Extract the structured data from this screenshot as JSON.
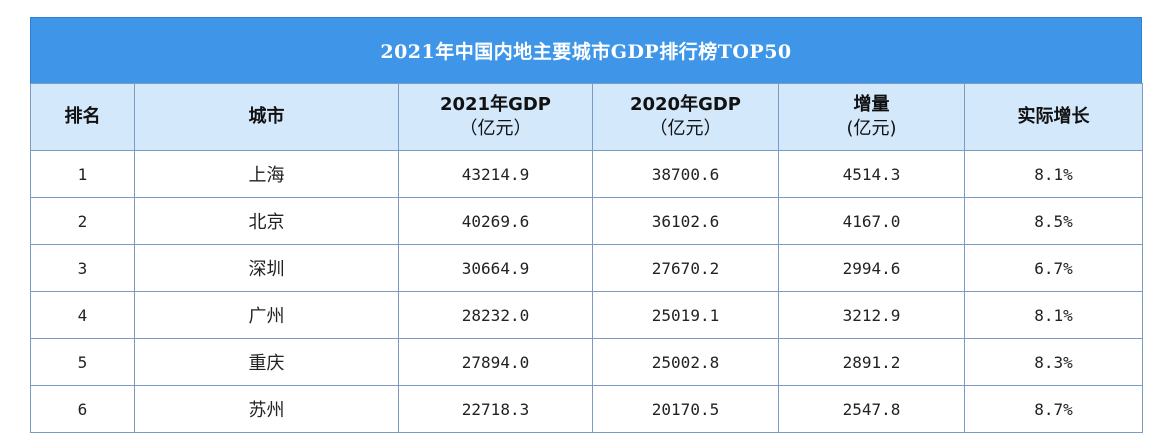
{
  "title": "2021年中国内地主要城市GDP排行榜TOP50",
  "headers": {
    "rank": "排名",
    "city": "城市",
    "gdp2021_line1": "2021年GDP",
    "gdp2021_line2": "（亿元）",
    "gdp2020_line1": "2020年GDP",
    "gdp2020_line2": "（亿元）",
    "increase_line1": "增量",
    "increase_line2": "(亿元)",
    "growth": "实际增长"
  },
  "rows": [
    {
      "rank": "1",
      "city": "上海",
      "gdp2021": "43214.9",
      "gdp2020": "38700.6",
      "increase": "4514.3",
      "growth": "8.1%"
    },
    {
      "rank": "2",
      "city": "北京",
      "gdp2021": "40269.6",
      "gdp2020": "36102.6",
      "increase": "4167.0",
      "growth": "8.5%"
    },
    {
      "rank": "3",
      "city": "深圳",
      "gdp2021": "30664.9",
      "gdp2020": "27670.2",
      "increase": "2994.6",
      "growth": "6.7%"
    },
    {
      "rank": "4",
      "city": "广州",
      "gdp2021": "28232.0",
      "gdp2020": "25019.1",
      "increase": "3212.9",
      "growth": "8.1%"
    },
    {
      "rank": "5",
      "city": "重庆",
      "gdp2021": "27894.0",
      "gdp2020": "25002.8",
      "increase": "2891.2",
      "growth": "8.3%"
    },
    {
      "rank": "6",
      "city": "苏州",
      "gdp2021": "22718.3",
      "gdp2020": "20170.5",
      "increase": "2547.8",
      "growth": "8.7%"
    }
  ]
}
